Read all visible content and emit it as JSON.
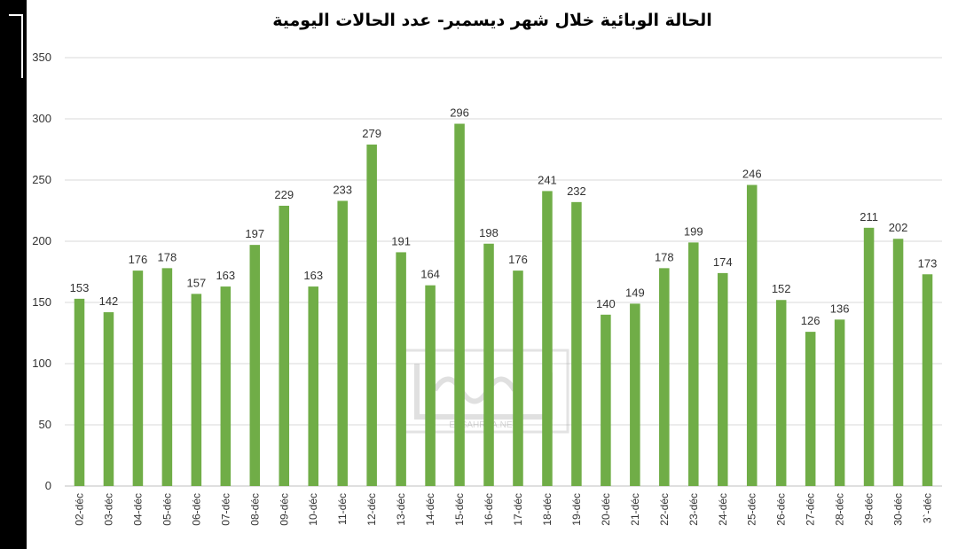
{
  "chart_data": {
    "type": "bar",
    "title": "الحالة الوبائية خلال شهر ديسمبر- عدد الحالات اليومية",
    "categories": [
      "02-déc",
      "03-déc",
      "04-déc",
      "05-déc",
      "06-déc",
      "07-déc",
      "08-déc",
      "09-déc",
      "10-déc",
      "11-déc",
      "12-déc",
      "13-déc",
      "14-déc",
      "15-déc",
      "16-déc",
      "17-déc",
      "18-déc",
      "19-déc",
      "20-déc",
      "21-déc",
      "22-déc",
      "23-déc",
      "24-déc",
      "25-déc",
      "26-déc",
      "27-déc",
      "28-déc",
      "29-déc",
      "30-déc",
      "3`-déc"
    ],
    "values": [
      153,
      142,
      176,
      178,
      157,
      163,
      197,
      229,
      163,
      233,
      279,
      191,
      164,
      296,
      198,
      176,
      241,
      232,
      140,
      149,
      178,
      199,
      174,
      246,
      152,
      126,
      136,
      211,
      202,
      173
    ],
    "ylim": [
      0,
      350
    ],
    "yticks": [
      0,
      50,
      100,
      150,
      200,
      250,
      300,
      350
    ],
    "grid": true,
    "bar_color": "#70AD47",
    "grid_color": "#d9d9d9",
    "xlabel": "",
    "ylabel": ""
  },
  "watermark": {
    "text": "ESSAHRAA.NET"
  }
}
